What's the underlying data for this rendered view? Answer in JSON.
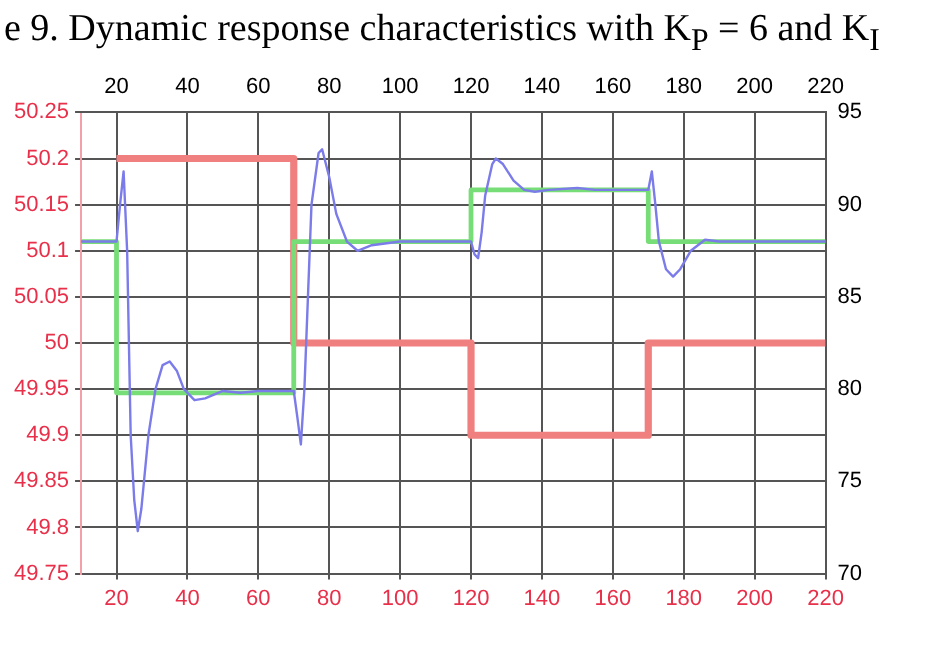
{
  "chart_data": {
    "type": "line",
    "title": "e 9. Dynamic response characteristics with K$_{P}$ = 6 and K$_{I}$",
    "xlim": [
      10,
      220
    ],
    "xticks": [
      20,
      40,
      60,
      80,
      100,
      120,
      140,
      160,
      180,
      200,
      220
    ],
    "x2lim": [
      10,
      220
    ],
    "x2ticks": [
      20,
      40,
      60,
      80,
      100,
      120,
      140,
      160,
      180,
      200,
      220
    ],
    "ylim": [
      49.75,
      50.25
    ],
    "yticks": [
      49.75,
      49.8,
      49.85,
      49.9,
      49.95,
      50,
      50.05,
      50.1,
      50.15,
      50.2,
      50.25
    ],
    "y2lim": [
      70,
      95
    ],
    "y2ticks": [
      70,
      75,
      80,
      85,
      90,
      95
    ],
    "grid": true,
    "legend": false,
    "marker": "none",
    "line_style": "solid",
    "series": [
      {
        "color": "#f08080",
        "x": [
          20,
          70,
          70,
          120,
          120,
          170,
          170,
          220
        ],
        "values": [
          50.2,
          50.2,
          50,
          50,
          49.9,
          49.9,
          50,
          50
        ]
      },
      {
        "color": "#77dd77",
        "axis": "y2",
        "x": [
          10,
          20,
          20,
          70,
          70,
          120,
          120,
          170,
          170,
          220
        ],
        "values": [
          88,
          88,
          79.8,
          79.8,
          88,
          88,
          90.8,
          90.8,
          88,
          88
        ]
      },
      {
        "color": "#7b7bea",
        "axis": "y2",
        "x": [
          10,
          20,
          21,
          22,
          23,
          24,
          25,
          26,
          27,
          29,
          31,
          33,
          35,
          37,
          39,
          42,
          45,
          50,
          55,
          60,
          70,
          71,
          72,
          73,
          74,
          75,
          77,
          78,
          80,
          82,
          85,
          88,
          92,
          100,
          120,
          121,
          122,
          123,
          124,
          126,
          127,
          129,
          132,
          135,
          138,
          142,
          150,
          155,
          170,
          171,
          172,
          173,
          175,
          177,
          179,
          182,
          186,
          190,
          220
        ],
        "values": [
          88,
          88,
          90,
          91.8,
          87.5,
          77.5,
          74,
          72.3,
          73.5,
          77.5,
          80,
          81.3,
          81.5,
          81,
          80,
          79.4,
          79.5,
          79.9,
          79.8,
          79.9,
          79.9,
          78.5,
          77,
          80,
          85,
          90,
          92.8,
          93,
          91.5,
          89.5,
          88,
          87.5,
          87.8,
          88,
          88,
          87.3,
          87.1,
          88.5,
          90.5,
          92.2,
          92.5,
          92.2,
          91.3,
          90.8,
          90.7,
          90.8,
          90.9,
          90.8,
          90.8,
          91.8,
          90,
          88,
          86.5,
          86.1,
          86.5,
          87.5,
          88.1,
          88,
          88
        ]
      }
    ]
  }
}
